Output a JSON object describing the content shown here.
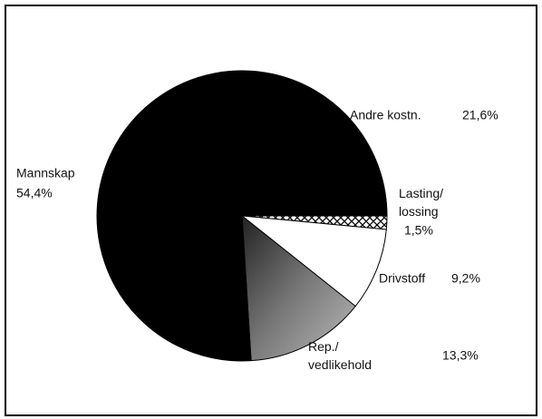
{
  "chart_data": {
    "type": "pie",
    "categories": [
      "Lasting/lossing",
      "Drivstoff",
      "Rep./vedlikehold",
      "Mannskap",
      "Andre kostn."
    ],
    "values": [
      1.5,
      9.2,
      13.3,
      54.4,
      21.6
    ],
    "value_labels": [
      "1,5%",
      "9,2%",
      "13,3%",
      "54,4%",
      "21,6%"
    ],
    "colors": [
      "crosshatch",
      "#ffffff",
      "gray",
      "#000000",
      "#000000"
    ]
  }
}
